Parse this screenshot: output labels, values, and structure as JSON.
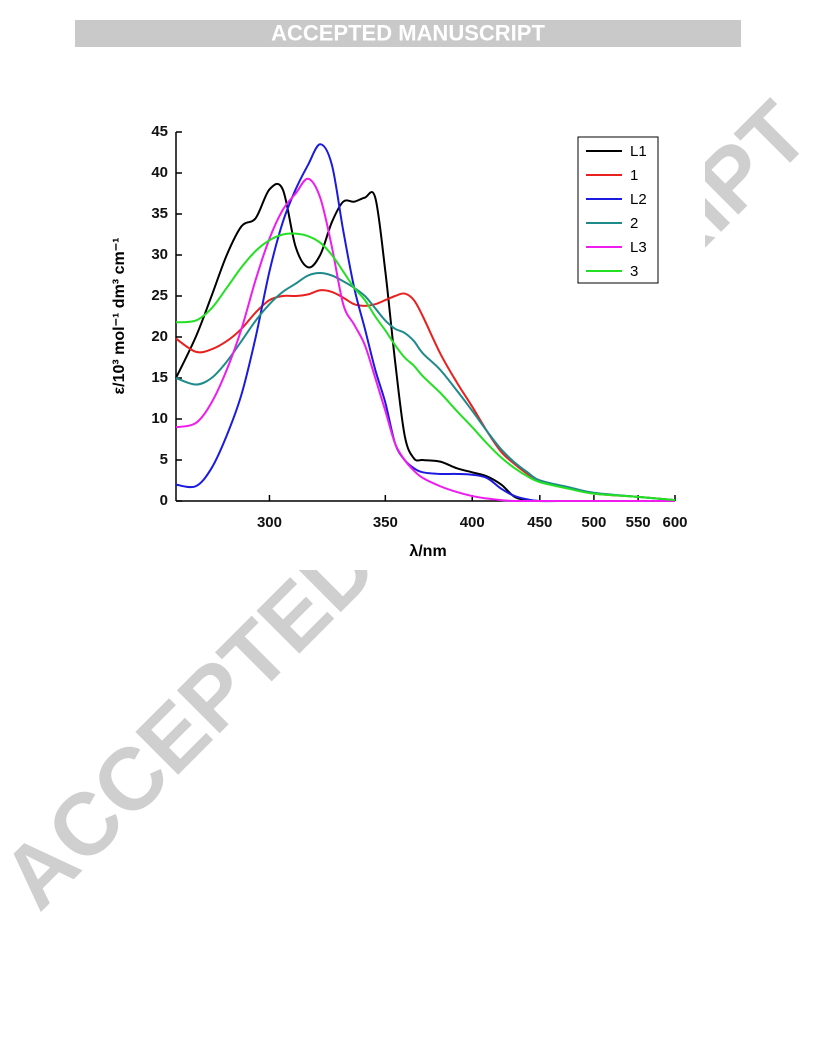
{
  "header": "ACCEPTED MANUSCRIPT",
  "watermark": "ACCEPTED MANUSCRIPT",
  "chart_data": {
    "type": "line",
    "xlabel": "λ/nm",
    "ylabel": "ε/10³ mol⁻¹ dm³ cm⁻¹",
    "xscale": "reciprocal",
    "xlim": [
      269,
      600
    ],
    "xticks": [
      300,
      350,
      400,
      450,
      500,
      550,
      600
    ],
    "ylim": [
      0,
      45
    ],
    "yticks": [
      0,
      5,
      10,
      15,
      20,
      25,
      30,
      35,
      40,
      45
    ],
    "legend": "upper right",
    "x": [
      269,
      275,
      280,
      285,
      290,
      295,
      300,
      305,
      310,
      315,
      320,
      325,
      330,
      335,
      340,
      345,
      350,
      355,
      360,
      365,
      370,
      380,
      390,
      400,
      410,
      420,
      430,
      440,
      450,
      475,
      500,
      550,
      600
    ],
    "series": [
      {
        "name": "L1",
        "color": "#000000",
        "values": [
          15,
          20,
          25,
          30,
          33.5,
          34.5,
          38,
          38,
          31,
          28.5,
          30,
          34,
          36.5,
          36.5,
          37,
          37,
          28,
          17,
          8,
          5.2,
          5,
          4.8,
          4,
          3.5,
          3,
          2,
          0.5,
          0.1,
          0,
          0,
          0,
          0,
          0
        ]
      },
      {
        "name": "1",
        "color": "#e8201e",
        "values": [
          19.8,
          18.2,
          18.5,
          19.5,
          21,
          23,
          24.5,
          25,
          25,
          25.2,
          25.7,
          25.5,
          24.8,
          24,
          23.8,
          24,
          24.5,
          25,
          25.3,
          24.5,
          22.5,
          18,
          14.5,
          11.5,
          8.5,
          6,
          4.5,
          3.3,
          2.5,
          1.6,
          0.9,
          0.5,
          0.1
        ]
      },
      {
        "name": "L2",
        "color": "#1a1ae0",
        "values": [
          2,
          1.8,
          4,
          8,
          13,
          20,
          28,
          34,
          38,
          41,
          43.5,
          41,
          33,
          26,
          21,
          16,
          12,
          7,
          5,
          4,
          3.5,
          3.3,
          3.3,
          3.2,
          2.8,
          1.5,
          0.6,
          0.2,
          0,
          0,
          0,
          0,
          0
        ]
      },
      {
        "name": "2",
        "color": "#1f8a8a",
        "values": [
          15,
          14.2,
          15,
          17,
          19.5,
          22,
          24,
          25.5,
          26.5,
          27.5,
          27.8,
          27.5,
          26.8,
          26,
          25,
          23.5,
          22,
          21,
          20.5,
          19.5,
          18,
          16,
          13.5,
          11,
          8.5,
          6.3,
          4.7,
          3.5,
          2.5,
          1.7,
          1,
          0.5,
          0.1
        ]
      },
      {
        "name": "L3",
        "color": "#ee1cee",
        "values": [
          9,
          9.5,
          12,
          16,
          21,
          27,
          32,
          35.5,
          37.5,
          39.3,
          37,
          31,
          24,
          21.5,
          19,
          15,
          11,
          7,
          5,
          3.7,
          2.8,
          1.8,
          1.1,
          0.6,
          0.3,
          0.1,
          0,
          0,
          0,
          0,
          0,
          0,
          0
        ]
      },
      {
        "name": "3",
        "color": "#22e022",
        "values": [
          21.8,
          22,
          23.5,
          26,
          28.5,
          30.5,
          31.8,
          32.5,
          32.6,
          32.3,
          31.5,
          30,
          28,
          26,
          24.5,
          22.5,
          20.8,
          19,
          17.5,
          16.5,
          15.2,
          13.2,
          11,
          9,
          7,
          5.3,
          4,
          3,
          2.3,
          1.5,
          0.9,
          0.5,
          0.1
        ]
      }
    ]
  }
}
